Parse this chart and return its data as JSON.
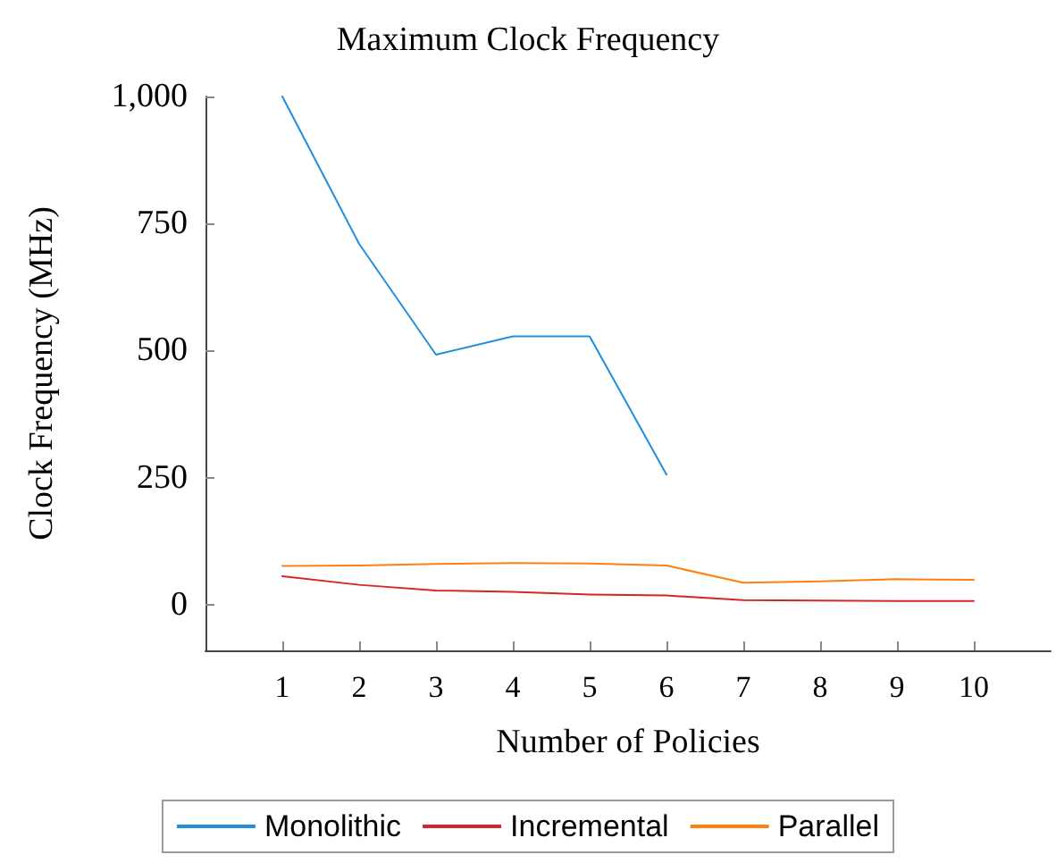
{
  "chart_data": {
    "type": "line",
    "title": "Maximum Clock Frequency",
    "xlabel": "Number of Policies",
    "ylabel": "Clock Frequency (MHz)",
    "x": [
      1,
      2,
      3,
      4,
      5,
      6,
      7,
      8,
      9,
      10
    ],
    "series": [
      {
        "name": "Monolithic",
        "color": "#1f8fdb",
        "values": [
          1000,
          710,
          492,
          528,
          528,
          256,
          null,
          null,
          null,
          null
        ]
      },
      {
        "name": "Incremental",
        "color": "#d62728",
        "values": [
          56,
          39,
          28,
          25,
          20,
          18,
          9,
          8,
          7,
          7
        ]
      },
      {
        "name": "Parallel",
        "color": "#ff7f0e",
        "values": [
          76,
          77,
          80,
          82,
          81,
          77,
          43,
          46,
          50,
          49
        ]
      }
    ],
    "xlim": [
      0,
      11
    ],
    "xticks": [
      1,
      2,
      3,
      4,
      5,
      6,
      7,
      8,
      9,
      10
    ],
    "ylim": [
      -90,
      1000
    ],
    "yticks": [
      0,
      250,
      500,
      750,
      {
        "value": 1000,
        "label": "1,000"
      }
    ],
    "grid": false,
    "legend": "bottom",
    "marker": "none",
    "line_style": "solid"
  }
}
